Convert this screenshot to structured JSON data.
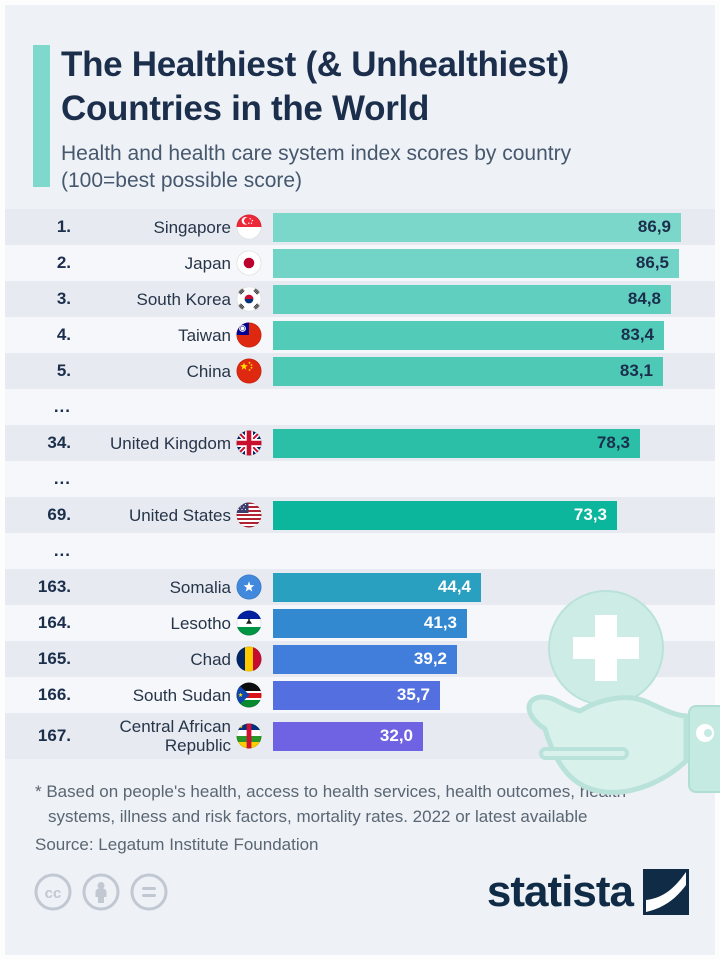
{
  "header": {
    "title_line1": "The Healthiest (& Unhealthiest)",
    "title_line2": "Countries in the World",
    "subtitle_line1": "Health and health care system index scores by country",
    "subtitle_line2": "(100=best possible score)"
  },
  "chart_data": {
    "type": "bar",
    "orientation": "horizontal",
    "title": "The Healthiest (& Unhealthiest) Countries in the World",
    "subtitle": "Health and health care system index scores by country (100=best possible score)",
    "xlim": [
      0,
      100
    ],
    "value_format": "decimal comma, one decimal place",
    "grid": false,
    "legend": false,
    "rows": [
      {
        "rank": "1.",
        "country": "Singapore",
        "flag": "singapore",
        "value": 86.9,
        "value_label": "86,9",
        "bar_color": "#7bd7c9",
        "value_color": "#1b2e4b"
      },
      {
        "rank": "2.",
        "country": "Japan",
        "flag": "japan",
        "value": 86.5,
        "value_label": "86,5",
        "bar_color": "#72d4c6",
        "value_color": "#1b2e4b"
      },
      {
        "rank": "3.",
        "country": "South Korea",
        "flag": "south-korea",
        "value": 84.8,
        "value_label": "84,8",
        "bar_color": "#61cfbf",
        "value_color": "#1b2e4b"
      },
      {
        "rank": "4.",
        "country": "Taiwan",
        "flag": "taiwan",
        "value": 83.4,
        "value_label": "83,4",
        "bar_color": "#53cbb9",
        "value_color": "#1b2e4b"
      },
      {
        "rank": "5.",
        "country": "China",
        "flag": "china",
        "value": 83.1,
        "value_label": "83,1",
        "bar_color": "#4dc9b6",
        "value_color": "#1b2e4b"
      },
      {
        "gap": true,
        "label": "..."
      },
      {
        "rank": "34.",
        "country": "United Kingdom",
        "flag": "united-kingdom",
        "value": 78.3,
        "value_label": "78,3",
        "bar_color": "#2abfa6",
        "value_color": "#1b2e4b"
      },
      {
        "gap": true,
        "label": "..."
      },
      {
        "rank": "69.",
        "country": "United States",
        "flag": "united-states",
        "value": 73.3,
        "value_label": "73,3",
        "bar_color": "#0cb69c",
        "value_color": "#ffffff"
      },
      {
        "gap": true,
        "label": "..."
      },
      {
        "rank": "163.",
        "country": "Somalia",
        "flag": "somalia",
        "value": 44.4,
        "value_label": "44,4",
        "bar_color": "#29a0c0",
        "value_color": "#ffffff"
      },
      {
        "rank": "164.",
        "country": "Lesotho",
        "flag": "lesotho",
        "value": 41.3,
        "value_label": "41,3",
        "bar_color": "#3389cf",
        "value_color": "#ffffff"
      },
      {
        "rank": "165.",
        "country": "Chad",
        "flag": "chad",
        "value": 39.2,
        "value_label": "39,2",
        "bar_color": "#417edb",
        "value_color": "#ffffff"
      },
      {
        "rank": "166.",
        "country": "South Sudan",
        "flag": "south-sudan",
        "value": 35.7,
        "value_label": "35,7",
        "bar_color": "#5470e0",
        "value_color": "#ffffff"
      },
      {
        "rank": "167.",
        "country": "Central African Republic",
        "flag": "central-african-republic",
        "value": 32.0,
        "value_label": "32,0",
        "bar_color": "#6f62e3",
        "value_color": "#ffffff",
        "tall": true
      }
    ]
  },
  "footer": {
    "footnote_line1": "* Based on people's health, access to health services, health outcomes, health",
    "footnote_line2": "systems, illness and risk factors, mortality rates. 2022 or latest available",
    "source": "Source: Legatum Institute Foundation"
  },
  "branding": {
    "logo_text": "statista",
    "license_icons": [
      "cc-icon",
      "attribution-person-icon",
      "equal-rights-icon"
    ]
  },
  "colors": {
    "accent": "#7ed9cc",
    "title_navy": "#1b2e4b",
    "subtitle_gray": "#46586e",
    "text_gray": "#5a6672",
    "stripe_dark": "#e7ebf1",
    "stripe_light": "#f5f7fa",
    "page_bg": "#eef1f6",
    "logo_navy": "#0f2b46",
    "decor_teal_fill": "#cdece5",
    "decor_teal_stroke": "#b9e2da"
  }
}
